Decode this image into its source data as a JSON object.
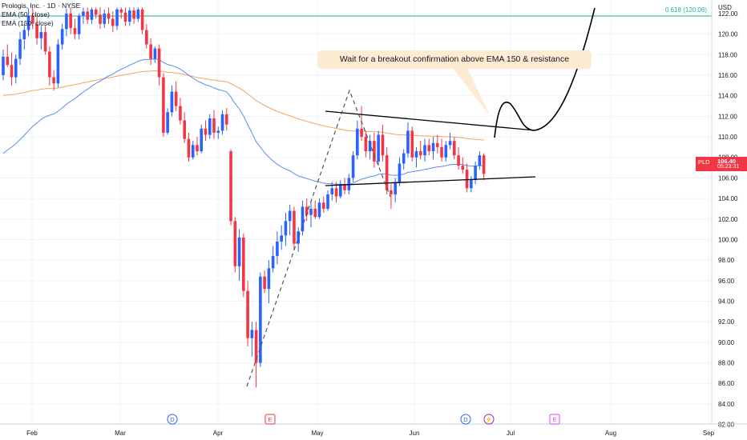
{
  "legend": {
    "symbol_line": "Prologis, Inc. · 1D · NYSE",
    "ma1": "EMA (50, close)",
    "ma2": "EMA (150, close)"
  },
  "price_axis": {
    "currency": "USD",
    "ticks": [
      "122.00",
      "120.00",
      "118.00",
      "116.00",
      "114.00",
      "112.00",
      "110.00",
      "108.00",
      "106.00",
      "104.00",
      "102.00",
      "100.00",
      "98.00",
      "96.00",
      "94.00",
      "92.00",
      "90.00",
      "88.00",
      "86.00",
      "84.00",
      "82.00"
    ]
  },
  "time_axis": {
    "months": [
      "Feb",
      "Mar",
      "Apr",
      "May",
      "Jun",
      "Jul",
      "Aug",
      "Sep"
    ]
  },
  "fib": {
    "label": "0.618 (120.06)",
    "color": "#22ab94"
  },
  "last_price": {
    "symbol": "PLD",
    "price": "106.40",
    "countdown": "05:23:31",
    "color": "#f23645"
  },
  "annotation": {
    "text": "Wait for a breakout confirmation above EMA 150 & resistance",
    "bg": "#fdebd2"
  },
  "event_markers": [
    {
      "letter": "D",
      "type": "dividend",
      "color": "#2962ff"
    },
    {
      "letter": "E",
      "type": "earnings",
      "color": "#f23645"
    },
    {
      "letter": "D",
      "type": "dividend",
      "color": "#2962ff"
    },
    {
      "letter": "⚡",
      "type": "split",
      "color": "#9c27b0"
    },
    {
      "letter": "E",
      "type": "earnings",
      "color": "#e040fb"
    }
  ],
  "chart_data": {
    "type": "candlestick",
    "ylim": [
      81.5,
      122.7
    ],
    "up_color": "#2962ff",
    "down_color": "#f23645",
    "ema50_color": "#5b8def",
    "ema150_color": "#f5a35c",
    "candles": [
      {
        "o": 116.0,
        "h": 118.5,
        "l": 115.5,
        "c": 117.8
      },
      {
        "o": 117.8,
        "h": 119.0,
        "l": 116.8,
        "c": 117.0
      },
      {
        "o": 117.0,
        "h": 118.2,
        "l": 115.0,
        "c": 115.8
      },
      {
        "o": 115.8,
        "h": 118.0,
        "l": 115.2,
        "c": 117.6
      },
      {
        "o": 117.6,
        "h": 120.2,
        "l": 117.0,
        "c": 119.5
      },
      {
        "o": 119.5,
        "h": 121.0,
        "l": 118.5,
        "c": 120.4
      },
      {
        "o": 120.4,
        "h": 122.5,
        "l": 119.8,
        "c": 121.8
      },
      {
        "o": 121.8,
        "h": 122.6,
        "l": 120.5,
        "c": 121.0
      },
      {
        "o": 121.0,
        "h": 121.8,
        "l": 119.0,
        "c": 119.6
      },
      {
        "o": 119.6,
        "h": 120.8,
        "l": 118.5,
        "c": 120.2
      },
      {
        "o": 120.2,
        "h": 120.8,
        "l": 118.0,
        "c": 118.3
      },
      {
        "o": 118.3,
        "h": 118.8,
        "l": 115.0,
        "c": 115.8
      },
      {
        "o": 115.8,
        "h": 116.5,
        "l": 114.5,
        "c": 115.2
      },
      {
        "o": 115.2,
        "h": 119.5,
        "l": 114.8,
        "c": 119.0
      },
      {
        "o": 119.0,
        "h": 121.0,
        "l": 118.5,
        "c": 120.5
      },
      {
        "o": 120.5,
        "h": 122.5,
        "l": 119.8,
        "c": 122.0
      },
      {
        "o": 122.0,
        "h": 122.6,
        "l": 120.0,
        "c": 120.6
      },
      {
        "o": 120.6,
        "h": 121.5,
        "l": 119.5,
        "c": 120.0
      },
      {
        "o": 120.0,
        "h": 122.0,
        "l": 119.5,
        "c": 121.8
      },
      {
        "o": 121.8,
        "h": 122.6,
        "l": 121.0,
        "c": 122.2
      },
      {
        "o": 122.2,
        "h": 122.6,
        "l": 121.0,
        "c": 121.4
      },
      {
        "o": 121.4,
        "h": 122.6,
        "l": 121.0,
        "c": 122.4
      },
      {
        "o": 122.4,
        "h": 122.6,
        "l": 121.5,
        "c": 121.9
      },
      {
        "o": 121.9,
        "h": 122.6,
        "l": 120.5,
        "c": 121.0
      },
      {
        "o": 121.0,
        "h": 122.4,
        "l": 120.6,
        "c": 122.0
      },
      {
        "o": 122.0,
        "h": 122.6,
        "l": 121.0,
        "c": 121.5
      },
      {
        "o": 121.5,
        "h": 122.2,
        "l": 120.2,
        "c": 120.8
      },
      {
        "o": 120.8,
        "h": 122.6,
        "l": 120.4,
        "c": 122.4
      },
      {
        "o": 122.4,
        "h": 122.6,
        "l": 121.5,
        "c": 122.1
      },
      {
        "o": 122.1,
        "h": 122.6,
        "l": 120.8,
        "c": 121.2
      },
      {
        "o": 121.2,
        "h": 122.6,
        "l": 120.8,
        "c": 122.3
      },
      {
        "o": 122.3,
        "h": 122.6,
        "l": 121.0,
        "c": 121.5
      },
      {
        "o": 121.5,
        "h": 122.6,
        "l": 121.2,
        "c": 122.4
      },
      {
        "o": 122.4,
        "h": 122.6,
        "l": 120.0,
        "c": 120.4
      },
      {
        "o": 120.4,
        "h": 121.0,
        "l": 118.6,
        "c": 119.0
      },
      {
        "o": 119.0,
        "h": 119.6,
        "l": 117.0,
        "c": 117.6
      },
      {
        "o": 117.6,
        "h": 118.8,
        "l": 117.2,
        "c": 118.6
      },
      {
        "o": 118.6,
        "h": 119.0,
        "l": 115.0,
        "c": 115.8
      },
      {
        "o": 115.8,
        "h": 116.2,
        "l": 110.0,
        "c": 110.4
      },
      {
        "o": 110.4,
        "h": 112.8,
        "l": 110.2,
        "c": 112.4
      },
      {
        "o": 112.4,
        "h": 115.0,
        "l": 112.0,
        "c": 114.4
      },
      {
        "o": 114.4,
        "h": 115.4,
        "l": 112.5,
        "c": 113.0
      },
      {
        "o": 113.0,
        "h": 113.8,
        "l": 111.2,
        "c": 111.6
      },
      {
        "o": 111.6,
        "h": 112.4,
        "l": 109.4,
        "c": 109.8
      },
      {
        "o": 109.8,
        "h": 110.4,
        "l": 107.6,
        "c": 108.0
      },
      {
        "o": 108.0,
        "h": 109.6,
        "l": 107.8,
        "c": 109.2
      },
      {
        "o": 109.2,
        "h": 110.0,
        "l": 108.2,
        "c": 108.6
      },
      {
        "o": 108.6,
        "h": 111.2,
        "l": 108.4,
        "c": 110.8
      },
      {
        "o": 110.8,
        "h": 111.6,
        "l": 109.6,
        "c": 110.2
      },
      {
        "o": 110.2,
        "h": 112.2,
        "l": 109.8,
        "c": 111.8
      },
      {
        "o": 111.8,
        "h": 112.6,
        "l": 109.8,
        "c": 110.4
      },
      {
        "o": 110.4,
        "h": 111.0,
        "l": 109.8,
        "c": 110.6
      },
      {
        "o": 110.6,
        "h": 112.6,
        "l": 110.2,
        "c": 112.2
      },
      {
        "o": 112.2,
        "h": 112.8,
        "l": 110.6,
        "c": 111.2
      },
      {
        "o": 108.6,
        "h": 108.8,
        "l": 101.4,
        "c": 101.8
      },
      {
        "o": 101.8,
        "h": 102.2,
        "l": 96.8,
        "c": 97.4
      },
      {
        "o": 97.4,
        "h": 101.0,
        "l": 96.0,
        "c": 100.2
      },
      {
        "o": 100.2,
        "h": 100.6,
        "l": 94.4,
        "c": 95.0
      },
      {
        "o": 95.0,
        "h": 96.0,
        "l": 89.6,
        "c": 90.4
      },
      {
        "o": 90.4,
        "h": 92.0,
        "l": 88.6,
        "c": 91.2
      },
      {
        "o": 91.2,
        "h": 92.0,
        "l": 85.6,
        "c": 88.0
      },
      {
        "o": 88.0,
        "h": 96.8,
        "l": 87.6,
        "c": 96.4
      },
      {
        "o": 96.4,
        "h": 97.0,
        "l": 94.8,
        "c": 95.2
      },
      {
        "o": 95.2,
        "h": 98.0,
        "l": 93.8,
        "c": 97.2
      },
      {
        "o": 97.2,
        "h": 99.4,
        "l": 96.8,
        "c": 98.4
      },
      {
        "o": 98.4,
        "h": 100.8,
        "l": 97.6,
        "c": 99.8
      },
      {
        "o": 99.8,
        "h": 101.4,
        "l": 99.0,
        "c": 100.4
      },
      {
        "o": 100.4,
        "h": 102.6,
        "l": 99.4,
        "c": 101.8
      },
      {
        "o": 101.8,
        "h": 103.4,
        "l": 100.4,
        "c": 102.8
      },
      {
        "o": 102.8,
        "h": 103.2,
        "l": 99.0,
        "c": 99.6
      },
      {
        "o": 99.6,
        "h": 101.2,
        "l": 98.8,
        "c": 100.8
      },
      {
        "o": 100.8,
        "h": 103.8,
        "l": 100.4,
        "c": 103.2
      },
      {
        "o": 103.2,
        "h": 104.0,
        "l": 101.8,
        "c": 102.4
      },
      {
        "o": 102.4,
        "h": 103.8,
        "l": 101.2,
        "c": 103.0
      },
      {
        "o": 103.0,
        "h": 103.8,
        "l": 102.0,
        "c": 102.2
      },
      {
        "o": 102.2,
        "h": 104.0,
        "l": 102.0,
        "c": 103.6
      },
      {
        "o": 103.6,
        "h": 104.2,
        "l": 102.6,
        "c": 103.0
      },
      {
        "o": 103.0,
        "h": 104.8,
        "l": 102.8,
        "c": 104.4
      },
      {
        "o": 104.4,
        "h": 105.6,
        "l": 103.8,
        "c": 105.0
      },
      {
        "o": 105.0,
        "h": 105.6,
        "l": 103.6,
        "c": 104.2
      },
      {
        "o": 104.2,
        "h": 105.8,
        "l": 104.0,
        "c": 105.4
      },
      {
        "o": 105.4,
        "h": 106.0,
        "l": 104.4,
        "c": 104.8
      },
      {
        "o": 104.8,
        "h": 106.4,
        "l": 104.4,
        "c": 106.0
      },
      {
        "o": 106.0,
        "h": 108.6,
        "l": 105.6,
        "c": 108.2
      },
      {
        "o": 108.2,
        "h": 111.6,
        "l": 107.8,
        "c": 110.8
      },
      {
        "o": 110.8,
        "h": 113.0,
        "l": 109.6,
        "c": 110.0
      },
      {
        "o": 110.0,
        "h": 110.6,
        "l": 108.0,
        "c": 108.6
      },
      {
        "o": 108.6,
        "h": 110.2,
        "l": 107.8,
        "c": 109.6
      },
      {
        "o": 109.6,
        "h": 110.4,
        "l": 107.0,
        "c": 107.6
      },
      {
        "o": 107.6,
        "h": 110.6,
        "l": 107.2,
        "c": 110.2
      },
      {
        "o": 110.2,
        "h": 111.2,
        "l": 107.6,
        "c": 108.2
      },
      {
        "o": 108.2,
        "h": 109.0,
        "l": 104.4,
        "c": 104.8
      },
      {
        "o": 104.8,
        "h": 105.4,
        "l": 103.0,
        "c": 104.4
      },
      {
        "o": 104.4,
        "h": 106.0,
        "l": 103.6,
        "c": 105.6
      },
      {
        "o": 105.6,
        "h": 108.0,
        "l": 105.2,
        "c": 107.4
      },
      {
        "o": 107.4,
        "h": 108.8,
        "l": 106.8,
        "c": 108.4
      },
      {
        "o": 108.4,
        "h": 111.4,
        "l": 108.0,
        "c": 110.6
      },
      {
        "o": 110.6,
        "h": 111.0,
        "l": 107.6,
        "c": 108.0
      },
      {
        "o": 108.0,
        "h": 109.0,
        "l": 107.0,
        "c": 108.6
      },
      {
        "o": 108.6,
        "h": 109.6,
        "l": 107.8,
        "c": 108.2
      },
      {
        "o": 108.2,
        "h": 109.8,
        "l": 107.6,
        "c": 109.2
      },
      {
        "o": 109.2,
        "h": 109.8,
        "l": 108.2,
        "c": 108.6
      },
      {
        "o": 108.6,
        "h": 110.0,
        "l": 107.8,
        "c": 109.4
      },
      {
        "o": 109.4,
        "h": 110.2,
        "l": 108.4,
        "c": 109.0
      },
      {
        "o": 109.0,
        "h": 109.8,
        "l": 107.6,
        "c": 108.0
      },
      {
        "o": 108.0,
        "h": 109.6,
        "l": 107.6,
        "c": 109.2
      },
      {
        "o": 109.2,
        "h": 110.4,
        "l": 108.8,
        "c": 109.6
      },
      {
        "o": 109.6,
        "h": 110.0,
        "l": 107.8,
        "c": 108.2
      },
      {
        "o": 108.2,
        "h": 109.0,
        "l": 106.8,
        "c": 107.2
      },
      {
        "o": 107.2,
        "h": 108.0,
        "l": 106.4,
        "c": 106.8
      },
      {
        "o": 106.8,
        "h": 107.4,
        "l": 104.6,
        "c": 105.0
      },
      {
        "o": 105.0,
        "h": 106.2,
        "l": 104.6,
        "c": 105.8
      },
      {
        "o": 105.8,
        "h": 107.6,
        "l": 105.4,
        "c": 107.2
      },
      {
        "o": 107.2,
        "h": 108.6,
        "l": 106.8,
        "c": 108.2
      },
      {
        "o": 108.2,
        "h": 108.4,
        "l": 105.8,
        "c": 106.4
      }
    ]
  }
}
